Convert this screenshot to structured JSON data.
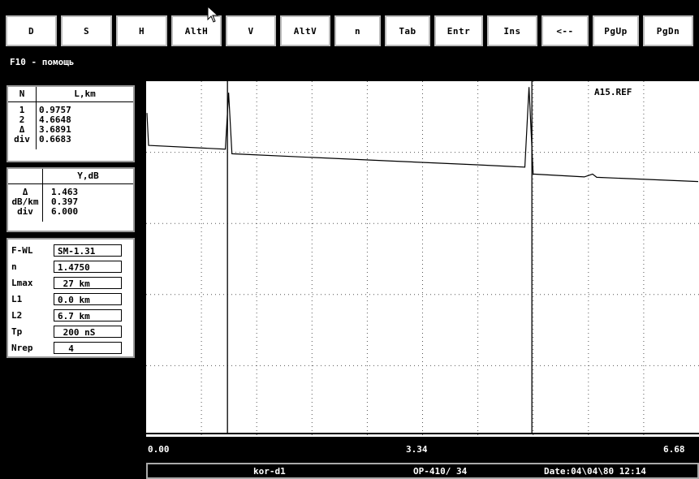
{
  "toolbar": {
    "buttons": [
      "D",
      "S",
      "H",
      "AltH",
      "V",
      "AltV",
      "n",
      "Tab",
      "Entr",
      "Ins",
      "<--",
      "PgUp",
      "PgDn"
    ]
  },
  "help_text": "F10 - помощь",
  "distance_table": {
    "col_n": "N",
    "col_l": "L,km",
    "rows": [
      {
        "n": "1",
        "v": "0.9757"
      },
      {
        "n": "2",
        "v": "4.6648"
      },
      {
        "n": "Δ",
        "v": "3.6891"
      },
      {
        "n": "div",
        "v": "0.6683"
      }
    ]
  },
  "level_table": {
    "col_y": "Y,dB",
    "rows": [
      {
        "n": "Δ",
        "v": "1.463"
      },
      {
        "n": "dB/km",
        "v": "0.397"
      },
      {
        "n": "div",
        "v": "6.000"
      }
    ]
  },
  "params": [
    {
      "label": "F-WL",
      "value": "SM-1.31"
    },
    {
      "label": "n",
      "value": "1.4750"
    },
    {
      "label": "Lmax",
      "value": " 27 km"
    },
    {
      "label": "L1",
      "value": "0.0 km"
    },
    {
      "label": "L2",
      "value": "6.7 km"
    },
    {
      "label": "Tp",
      "value": " 200 nS"
    },
    {
      "label": "Nrep",
      "value": "  4"
    }
  ],
  "trace": {
    "ref_label": "A15.REF",
    "x_axis_km": [
      0.0,
      6.68
    ],
    "marker1_km": 0.9757,
    "marker2_km": 4.6648,
    "points_km_db": [
      [
        0.0,
        -3.0
      ],
      [
        0.02,
        -6.5
      ],
      [
        0.95,
        -6.9
      ],
      [
        0.99,
        -0.8
      ],
      [
        1.03,
        -7.4
      ],
      [
        2.0,
        -7.8
      ],
      [
        3.0,
        -8.2
      ],
      [
        4.0,
        -8.6
      ],
      [
        4.58,
        -8.85
      ],
      [
        4.63,
        -0.2
      ],
      [
        4.68,
        -9.6
      ],
      [
        5.3,
        -9.9
      ],
      [
        5.4,
        -9.6
      ],
      [
        5.45,
        -9.95
      ],
      [
        6.68,
        -10.4
      ]
    ]
  },
  "x_axis": {
    "left": "0.00",
    "mid": "3.34",
    "right": "6.68"
  },
  "status": {
    "file": "kor-d1",
    "device": "OP-410/ 34",
    "date": "Date:04\\04\\80 12:14"
  }
}
